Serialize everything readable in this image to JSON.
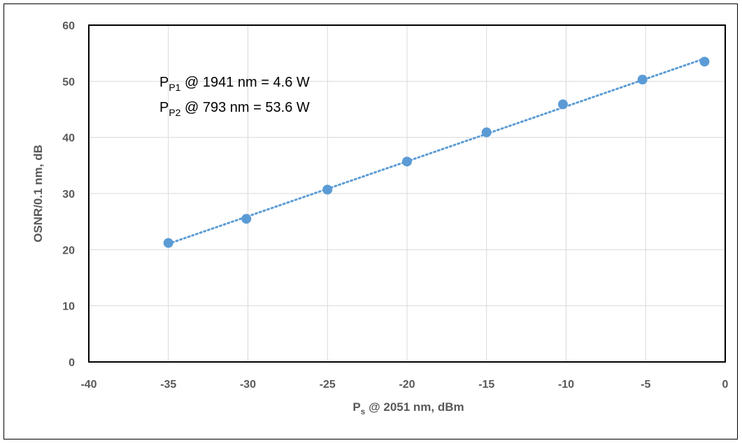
{
  "chart_data": {
    "type": "scatter",
    "title": "",
    "xlabel": {
      "main": "P",
      "sub": "s",
      "rest": " @ 2051 nm, dBm"
    },
    "ylabel": "OSNR/0.1 nm, dB",
    "xlim": [
      -40,
      0
    ],
    "ylim": [
      0,
      60
    ],
    "xticks": [
      -40,
      -35,
      -30,
      -25,
      -20,
      -15,
      -10,
      -5,
      0
    ],
    "yticks": [
      0,
      10,
      20,
      30,
      40,
      50,
      60
    ],
    "grid": true,
    "series": [
      {
        "color": "#5b9bd5",
        "marker": "circle",
        "trendline": "dotted linear",
        "points": [
          {
            "x": -35,
            "y": 21.2
          },
          {
            "x": -30.1,
            "y": 25.5
          },
          {
            "x": -25,
            "y": 30.7
          },
          {
            "x": -20,
            "y": 35.7
          },
          {
            "x": -15,
            "y": 40.9
          },
          {
            "x": -10.2,
            "y": 45.9
          },
          {
            "x": -5.2,
            "y": 50.3
          },
          {
            "x": -1.3,
            "y": 53.5
          }
        ]
      }
    ],
    "annotations": [
      {
        "main": "P",
        "sub": "P1",
        "rest": " @ 1941 nm = 4.6 W"
      },
      {
        "main": "P",
        "sub": "P2",
        "rest": " @ 793 nm = 53.6 W"
      }
    ]
  }
}
